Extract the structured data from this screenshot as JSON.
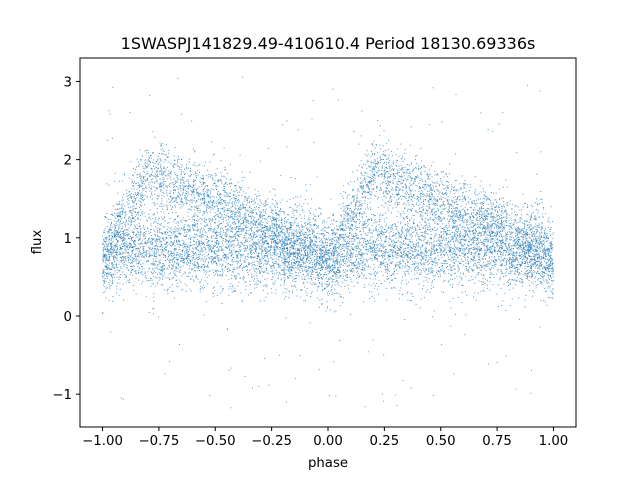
{
  "chart_data": {
    "type": "scatter",
    "title": "1SWASPJ141829.49-410610.4 Period 18130.69336s",
    "xlabel": "phase",
    "ylabel": "flux",
    "xlim": [
      -1.1,
      1.1
    ],
    "ylim": [
      -1.42,
      3.3
    ],
    "x_ticks": [
      -1.0,
      -0.75,
      -0.5,
      -0.25,
      0.0,
      0.25,
      0.5,
      0.75,
      1.0
    ],
    "x_tick_labels": [
      "−1.00",
      "−0.75",
      "−0.50",
      "−0.25",
      "0.00",
      "0.25",
      "0.50",
      "0.75",
      "1.00"
    ],
    "y_ticks": [
      -1,
      0,
      1,
      2,
      3
    ],
    "y_tick_labels": [
      "−1",
      "0",
      "1",
      "2",
      "3"
    ],
    "grid": false,
    "legend": "none",
    "point_color": "#1f77b4",
    "x_range_of_points": [
      -1.0,
      1.0
    ],
    "series_structure": {
      "baseline_band": {
        "center_flux": 0.85,
        "spread": 0.25
      },
      "bump": {
        "peak_phase": [
          -0.8,
          0.2
        ],
        "peak_flux": 1.85,
        "rise_phase_start": [
          -0.95,
          0.05
        ],
        "decay_phase_end": [
          -0.2,
          0.8
        ],
        "decay_flux_end": 1.1
      },
      "dip": {
        "min_phase": 0.0,
        "min_flux": 0.7
      },
      "outlier_range": [
        -1.2,
        3.1
      ]
    }
  }
}
